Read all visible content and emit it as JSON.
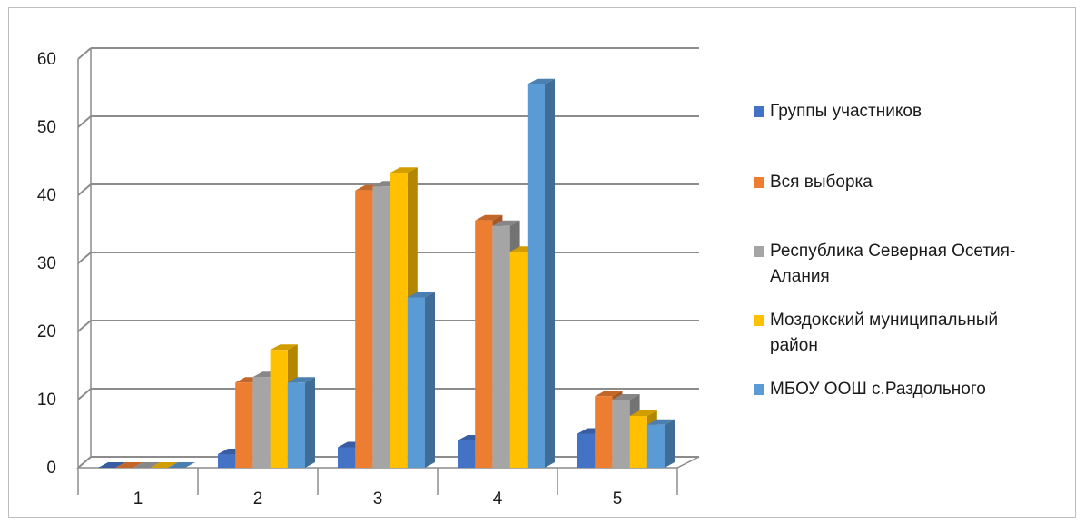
{
  "chart_data": {
    "type": "bar",
    "style": "3d-clustered-column",
    "categories": [
      "1",
      "2",
      "3",
      "4",
      "5"
    ],
    "series": [
      {
        "name": "Группы участников",
        "color": "#4472C4",
        "values": [
          0,
          2,
          3,
          4,
          5
        ]
      },
      {
        "name": "Вся выборка",
        "color": "#ED7D31",
        "values": [
          0,
          12.5,
          40.7,
          36.3,
          10.5
        ]
      },
      {
        "name": "Республика Северная Осетия-Алания",
        "color": "#A5A5A5",
        "values": [
          0,
          13.3,
          41.3,
          35.5,
          10
        ]
      },
      {
        "name": "Моздокский муниципальный район",
        "color": "#FFC000",
        "values": [
          0,
          17.3,
          43.3,
          31.7,
          7.6
        ]
      },
      {
        "name": "МБОУ ООШ с.Раздольного",
        "color": "#5B9BD5",
        "values": [
          0,
          12.5,
          25,
          56.3,
          6.3
        ]
      }
    ],
    "yticks": [
      0,
      10,
      20,
      30,
      40,
      50,
      60
    ],
    "ylim": [
      0,
      60
    ],
    "grid": true,
    "legend_position": "right",
    "title": "",
    "xlabel": "",
    "ylabel": ""
  },
  "legend": {
    "items": [
      {
        "line1": "Группы участников",
        "line2": ""
      },
      {
        "line1": "Вся выборка",
        "line2": ""
      },
      {
        "line1": "Республика Северная Осетия-",
        "line2": "Алания"
      },
      {
        "line1": "Моздокский муниципальный",
        "line2": "район"
      },
      {
        "line1": "МБОУ ООШ с.Раздольного",
        "line2": ""
      }
    ]
  }
}
